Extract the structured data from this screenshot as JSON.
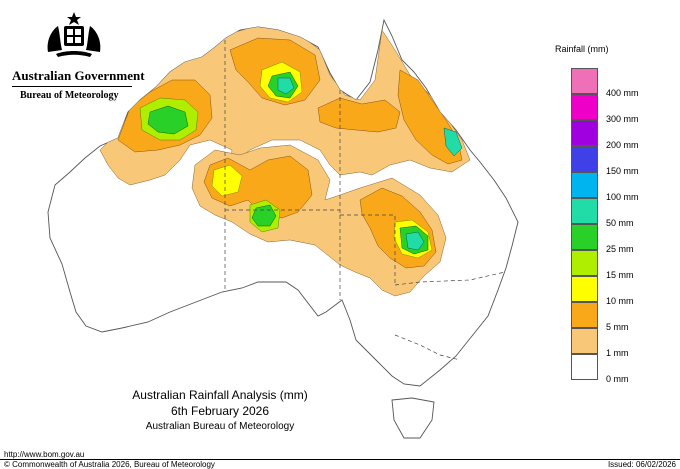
{
  "branding": {
    "government": "Australian Government",
    "bureau": "Bureau of Meteorology",
    "crest_icon": "commonwealth-coat-of-arms"
  },
  "map": {
    "title": "Australian Rainfall Analysis (mm)",
    "date": "6th February 2026",
    "agency": "Australian Bureau of Meteorology"
  },
  "legend": {
    "title": "Rainfall (mm)",
    "items": [
      {
        "label": "400 mm",
        "color": "#f070b8"
      },
      {
        "label": "300 mm",
        "color": "#ee00c8"
      },
      {
        "label": "200 mm",
        "color": "#a000e0"
      },
      {
        "label": "150 mm",
        "color": "#4040e8"
      },
      {
        "label": "100 mm",
        "color": "#00b4f0"
      },
      {
        "label": "50 mm",
        "color": "#22dca8"
      },
      {
        "label": "25 mm",
        "color": "#28d028"
      },
      {
        "label": "15 mm",
        "color": "#b0ee00"
      },
      {
        "label": "10 mm",
        "color": "#ffff00"
      },
      {
        "label": "5 mm",
        "color": "#f8a818"
      },
      {
        "label": "1 mm",
        "color": "#f8c878"
      },
      {
        "label": "0 mm",
        "color": "#ffffff"
      }
    ]
  },
  "footer": {
    "url": "http://www.bom.gov.au",
    "copyright": "© Commonwealth of Australia 2026, Bureau of Meteorology",
    "issued": "Issued: 06/02/2026"
  }
}
